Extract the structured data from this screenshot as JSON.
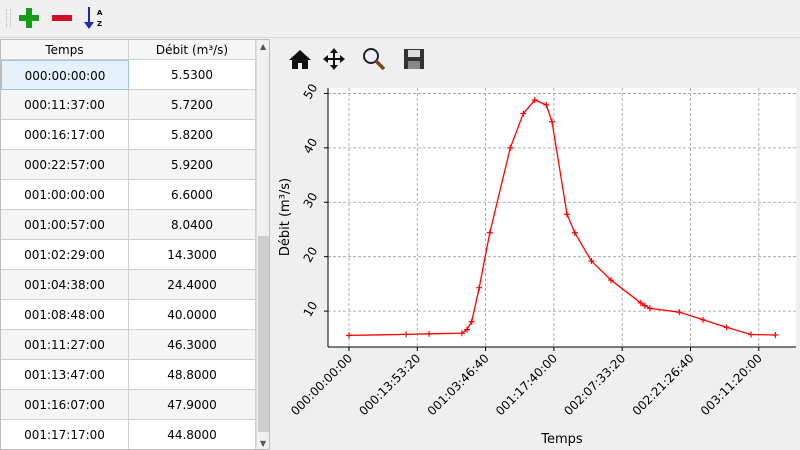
{
  "toolbar": {
    "icons": [
      "add-icon",
      "remove-icon",
      "sort-az-icon"
    ],
    "add_color": "#1a9a1a",
    "remove_color": "#d01024",
    "sort_color": "#1a2ea8",
    "sort_letters": [
      "A",
      "Z"
    ]
  },
  "table": {
    "columns": [
      "Temps",
      "Débit (m³/s)"
    ],
    "rows": [
      [
        "000:00:00:00",
        "5.5300"
      ],
      [
        "000:11:37:00",
        "5.7200"
      ],
      [
        "000:16:17:00",
        "5.8200"
      ],
      [
        "000:22:57:00",
        "5.9200"
      ],
      [
        "001:00:00:00",
        "6.6000"
      ],
      [
        "001:00:57:00",
        "8.0400"
      ],
      [
        "001:02:29:00",
        "14.3000"
      ],
      [
        "001:04:38:00",
        "24.4000"
      ],
      [
        "001:08:48:00",
        "40.0000"
      ],
      [
        "001:11:27:00",
        "46.3000"
      ],
      [
        "001:13:47:00",
        "48.8000"
      ],
      [
        "001:16:07:00",
        "47.9000"
      ],
      [
        "001:17:17:00",
        "44.8000"
      ]
    ]
  },
  "chart_toolbar": {
    "icons": [
      "home-icon",
      "pan-icon",
      "zoom-icon",
      "save-icon"
    ]
  },
  "chart_data": {
    "type": "line",
    "xlabel": "Temps",
    "ylabel": "Débit (m³/s)",
    "color": "#ff0000",
    "marker": "+",
    "grid": true,
    "xticks": [
      "000:00:00:00",
      "000:13:53:20",
      "001:03:46:40",
      "001:17:40:00",
      "002:07:33:20",
      "002:21:26:40",
      "003:11:20:00"
    ],
    "yticks": [
      10,
      20,
      30,
      40,
      50
    ],
    "xlim": [
      "-000:04:16:10",
      "003:18:53:50"
    ],
    "ylim": [
      3.4,
      51
    ],
    "x": [
      "000:00:00:00",
      "000:11:37:00",
      "000:16:17:00",
      "000:22:57:00",
      "001:00:00:00",
      "001:00:57:00",
      "001:02:29:00",
      "001:04:38:00",
      "001:08:48:00",
      "001:11:27:00",
      "001:13:47:00",
      "001:16:07:00",
      "001:17:17:00",
      "001:20:20:00",
      "001:21:55:00",
      "002:01:18:00",
      "002:05:17:00",
      "002:11:20:00",
      "002:12:09:00",
      "002:13:11:00",
      "002:19:10:00",
      "003:00:00:00",
      "003:04:48:00",
      "003:09:45:00",
      "003:14:42:00"
    ],
    "y": [
      5.53,
      5.72,
      5.82,
      5.92,
      6.6,
      8.04,
      14.3,
      24.4,
      40.0,
      46.3,
      48.8,
      47.9,
      44.8,
      27.8,
      24.4,
      19.2,
      15.7,
      11.5,
      11.0,
      10.5,
      9.8,
      8.4,
      7.0,
      5.7,
      5.6
    ]
  }
}
